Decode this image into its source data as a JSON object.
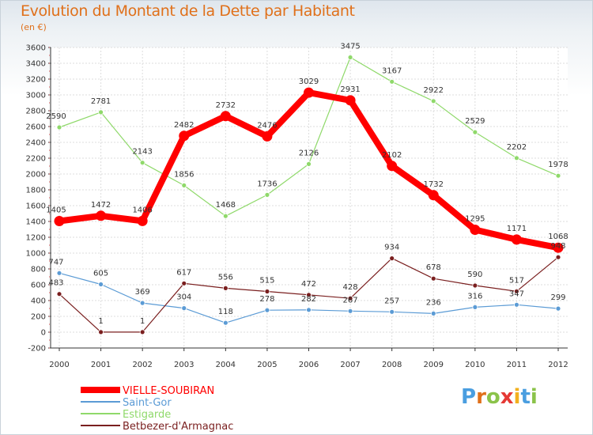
{
  "chart_data": {
    "type": "line",
    "title": "Evolution du Montant de la Dette par Habitant",
    "subtitle": "(en €)",
    "xlabel": "",
    "ylabel": "",
    "ylim": [
      -200,
      3600
    ],
    "y_ticks": [
      -200,
      0,
      200,
      400,
      600,
      800,
      1000,
      1200,
      1400,
      1600,
      1800,
      2000,
      2200,
      2400,
      2600,
      2800,
      3000,
      3200,
      3400,
      3600
    ],
    "grid": true,
    "legend_position": "bottom-left",
    "categories": [
      "2000",
      "2001",
      "2002",
      "2003",
      "2004",
      "2005",
      "2006",
      "2007",
      "2008",
      "2009",
      "2010",
      "2011",
      "2012"
    ],
    "series": [
      {
        "name": "VIELLE-SOUBIRAN",
        "color": "#ff0000",
        "values": [
          1405,
          1472,
          1406,
          2482,
          2732,
          2476,
          3029,
          2931,
          2102,
          1732,
          1295,
          1171,
          1068
        ]
      },
      {
        "name": "Saint-Gor",
        "color": "#5b9bd5",
        "values": [
          747,
          605,
          369,
          304,
          118,
          278,
          282,
          267,
          257,
          236,
          316,
          347,
          299
        ]
      },
      {
        "name": "Estigarde",
        "color": "#8fd96a",
        "values": [
          2590,
          2781,
          2143,
          1856,
          1468,
          1736,
          2126,
          3475,
          3167,
          2922,
          2529,
          2202,
          1978
        ]
      },
      {
        "name": "Betbezer-d'Armagnac",
        "color": "#7a1f1f",
        "values": [
          483,
          1,
          1,
          617,
          556,
          515,
          472,
          428,
          934,
          678,
          590,
          517,
          948
        ]
      }
    ]
  },
  "logo": {
    "letters": [
      "P",
      "r",
      "o",
      "x",
      "i",
      "t",
      "i"
    ],
    "colors": [
      "#4a9ee0",
      "#e0701a",
      "#8bc34a",
      "#e53935",
      "#f2b01e",
      "#4a9ee0",
      "#8bc34a"
    ]
  }
}
